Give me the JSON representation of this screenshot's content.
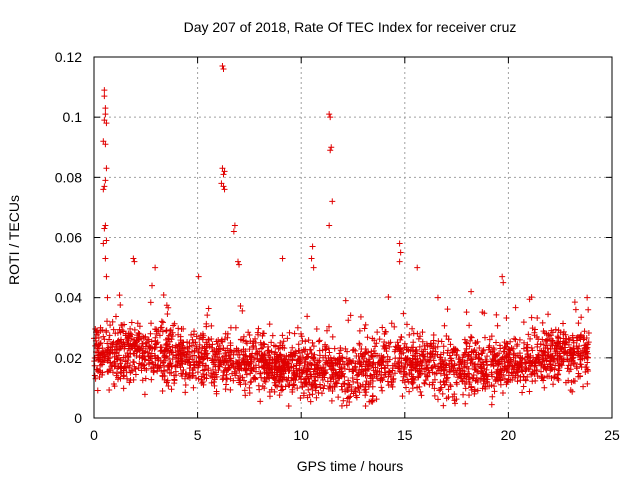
{
  "chart_data": {
    "type": "scatter",
    "title": "Day 207 of 2018, Rate Of TEC Index for receiver cruz",
    "xlabel": "GPS time / hours",
    "ylabel": "ROTI / TECUs",
    "xlim": [
      0,
      25
    ],
    "ylim": [
      0,
      0.12
    ],
    "xticks": [
      0,
      5,
      10,
      15,
      20,
      25
    ],
    "yticks": [
      0,
      0.02,
      0.04,
      0.06,
      0.08,
      0.1,
      0.12
    ],
    "xtick_labels": [
      "0",
      "5",
      "10",
      "15",
      "20",
      "25"
    ],
    "ytick_labels": [
      "0",
      "0.02",
      "0.04",
      "0.06",
      "0.08",
      "0.1",
      "0.12"
    ],
    "grid": true,
    "marker": "+",
    "color": "#e00000",
    "series": [
      {
        "name": "ROTI",
        "x_range": [
          0,
          23.9
        ],
        "baseline_mean": 0.018,
        "baseline_spread": 0.009,
        "outliers": [
          {
            "x": 0.5,
            "y": 0.109
          },
          {
            "x": 0.5,
            "y": 0.107
          },
          {
            "x": 0.55,
            "y": 0.103
          },
          {
            "x": 0.55,
            "y": 0.101
          },
          {
            "x": 0.5,
            "y": 0.099
          },
          {
            "x": 0.6,
            "y": 0.098
          },
          {
            "x": 0.45,
            "y": 0.092
          },
          {
            "x": 0.55,
            "y": 0.091
          },
          {
            "x": 0.6,
            "y": 0.083
          },
          {
            "x": 0.55,
            "y": 0.079
          },
          {
            "x": 0.5,
            "y": 0.077
          },
          {
            "x": 0.45,
            "y": 0.076
          },
          {
            "x": 0.55,
            "y": 0.064
          },
          {
            "x": 0.5,
            "y": 0.063
          },
          {
            "x": 0.6,
            "y": 0.059
          },
          {
            "x": 0.45,
            "y": 0.058
          },
          {
            "x": 0.55,
            "y": 0.053
          },
          {
            "x": 0.6,
            "y": 0.047
          },
          {
            "x": 0.65,
            "y": 0.04
          },
          {
            "x": 6.2,
            "y": 0.117
          },
          {
            "x": 6.25,
            "y": 0.116
          },
          {
            "x": 6.2,
            "y": 0.083
          },
          {
            "x": 6.3,
            "y": 0.082
          },
          {
            "x": 6.25,
            "y": 0.081
          },
          {
            "x": 6.15,
            "y": 0.078
          },
          {
            "x": 6.25,
            "y": 0.077
          },
          {
            "x": 6.3,
            "y": 0.076
          },
          {
            "x": 6.8,
            "y": 0.064
          },
          {
            "x": 6.75,
            "y": 0.062
          },
          {
            "x": 11.35,
            "y": 0.101
          },
          {
            "x": 11.4,
            "y": 0.1
          },
          {
            "x": 11.45,
            "y": 0.09
          },
          {
            "x": 11.4,
            "y": 0.089
          },
          {
            "x": 11.5,
            "y": 0.072
          },
          {
            "x": 11.35,
            "y": 0.064
          },
          {
            "x": 10.55,
            "y": 0.057
          },
          {
            "x": 10.5,
            "y": 0.053
          },
          {
            "x": 10.6,
            "y": 0.05
          },
          {
            "x": 14.75,
            "y": 0.058
          },
          {
            "x": 14.8,
            "y": 0.055
          },
          {
            "x": 14.75,
            "y": 0.052
          },
          {
            "x": 15.6,
            "y": 0.05
          },
          {
            "x": 9.1,
            "y": 0.053
          },
          {
            "x": 5.05,
            "y": 0.047
          },
          {
            "x": 1.9,
            "y": 0.053
          },
          {
            "x": 1.95,
            "y": 0.052
          },
          {
            "x": 2.95,
            "y": 0.05
          },
          {
            "x": 6.95,
            "y": 0.052
          },
          {
            "x": 7.0,
            "y": 0.051
          },
          {
            "x": 19.7,
            "y": 0.047
          },
          {
            "x": 19.75,
            "y": 0.045
          },
          {
            "x": 23.8,
            "y": 0.04
          },
          {
            "x": 23.85,
            "y": 0.036
          },
          {
            "x": 16.6,
            "y": 0.04
          },
          {
            "x": 18.2,
            "y": 0.042
          },
          {
            "x": 2.8,
            "y": 0.044
          },
          {
            "x": 12.15,
            "y": 0.039
          }
        ],
        "minimum_envelope": 0.004
      }
    ]
  }
}
